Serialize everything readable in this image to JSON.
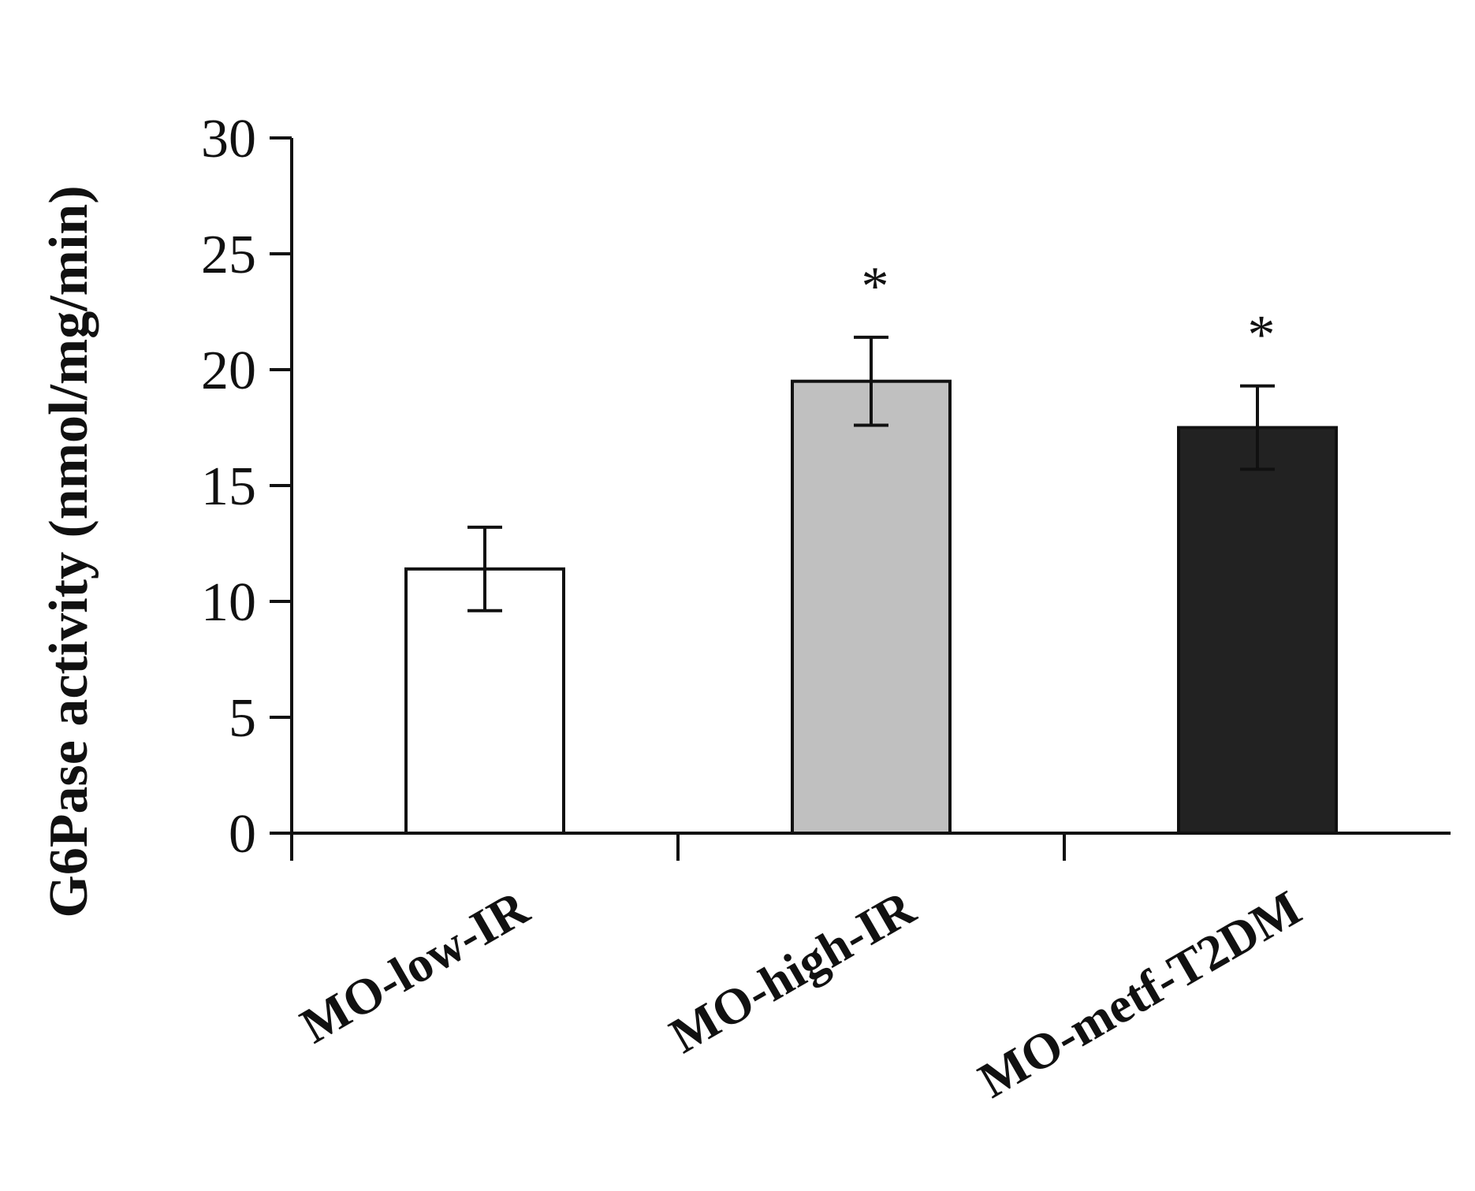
{
  "chart_data": {
    "type": "bar",
    "categories": [
      "MO-low-IR",
      "MO-high-IR",
      "MO-metf-T2DM"
    ],
    "values": [
      11.4,
      19.5,
      17.5
    ],
    "errors": [
      1.8,
      1.9,
      1.8
    ],
    "significance": [
      "",
      "*",
      "*"
    ],
    "bar_colors": [
      "#ffffff",
      "#c0c0c0",
      "#222222"
    ],
    "title": "",
    "xlabel": "",
    "ylabel": "G6Pase activity (nmol/mg/min)",
    "ylim": [
      0,
      30
    ],
    "yticks": [
      0,
      5,
      10,
      15,
      20,
      25,
      30
    ],
    "grid": false,
    "legend": "none"
  }
}
